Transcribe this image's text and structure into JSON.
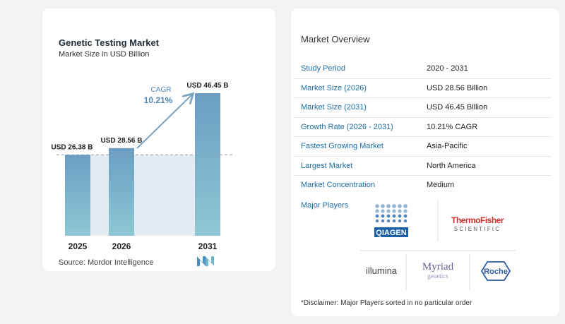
{
  "chart_data": {
    "type": "bar",
    "title": "Genetic Testing Market",
    "subtitle": "Market Size in USD Billion",
    "categories": [
      "2025",
      "2026",
      "2031"
    ],
    "values": [
      26.38,
      28.56,
      46.45
    ],
    "data_labels": [
      "USD 26.38 B",
      "USD 28.56 B",
      "USD 46.45 B"
    ],
    "ylim": [
      0,
      46.45
    ],
    "cagr_label": "CAGR",
    "cagr_value": "10.21%",
    "colors": {
      "bar_top": "#6b9dc3",
      "bar_bottom": "#8fc7d4",
      "shade": "#e3ecf3",
      "arrow": "#7ba3c2",
      "cagr": "#4f87b6"
    }
  },
  "source": "Source:  Mordor Intelligence",
  "overview": {
    "title": "Market Overview",
    "rows": [
      {
        "key": "Study Period",
        "value": "2020 - 2031"
      },
      {
        "key": "Market Size (2026)",
        "value": "USD 28.56 Billion"
      },
      {
        "key": "Market Size (2031)",
        "value": "USD 46.45 Billion"
      },
      {
        "key": "Growth Rate (2026 - 2031)",
        "value": "10.21% CAGR"
      },
      {
        "key": "Fastest Growing Market",
        "value": "Asia-Pacific"
      },
      {
        "key": "Largest Market",
        "value": "North America"
      },
      {
        "key": "Market Concentration",
        "value": "Medium"
      }
    ]
  },
  "players": {
    "label": "Major Players",
    "logos": {
      "qiagen": "QIAGEN",
      "thermo_line1": "ThermoFisher",
      "thermo_line2": "SCIENTIFIC",
      "illumina": "illumina",
      "myriad_line1": "Myriad",
      "myriad_line2": "genetics",
      "roche": "Roche"
    }
  },
  "disclaimer": "*Disclaimer: Major Players sorted in no particular order"
}
